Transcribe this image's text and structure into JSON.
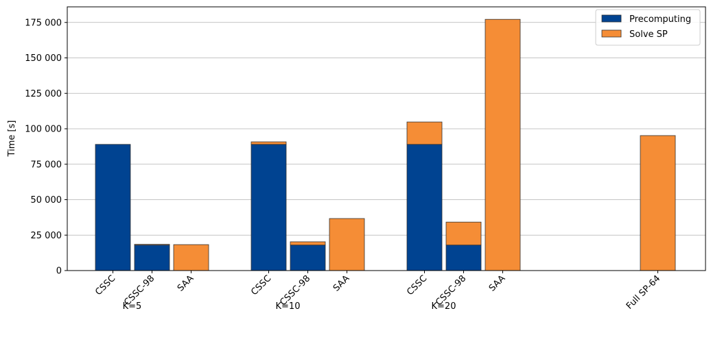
{
  "chart_data": {
    "type": "bar",
    "stacked": true,
    "ylabel": "Time [s]",
    "ylim": [
      0,
      186000
    ],
    "yticks": [
      0,
      25000,
      50000,
      75000,
      100000,
      125000,
      150000,
      175000
    ],
    "ytick_labels": [
      "0",
      "25 000",
      "50 000",
      "75 000",
      "100 000",
      "125 000",
      "150 000",
      "175 000"
    ],
    "grid": "horizontal",
    "legend_position": "top-right",
    "categories": [
      "CSSC",
      "CSSC-98",
      "SAA",
      "CSSC",
      "CSSC-98",
      "SAA",
      "CSSC",
      "CSSC-98",
      "SAA",
      "Full SP-64"
    ],
    "category_groups": [
      0,
      0,
      0,
      1,
      1,
      1,
      2,
      2,
      2,
      3
    ],
    "groups": [
      "K=5",
      "K=10",
      "K=20",
      ""
    ],
    "series": [
      {
        "name": "Precomputing",
        "color": "#004391",
        "values": [
          89000,
          18000,
          0,
          89000,
          18000,
          0,
          89000,
          18000,
          0,
          0
        ]
      },
      {
        "name": "Solve SP",
        "color": "#f58d36",
        "values": [
          0,
          500,
          18300,
          1800,
          2300,
          36700,
          15800,
          16200,
          177200,
          95200
        ]
      }
    ]
  }
}
